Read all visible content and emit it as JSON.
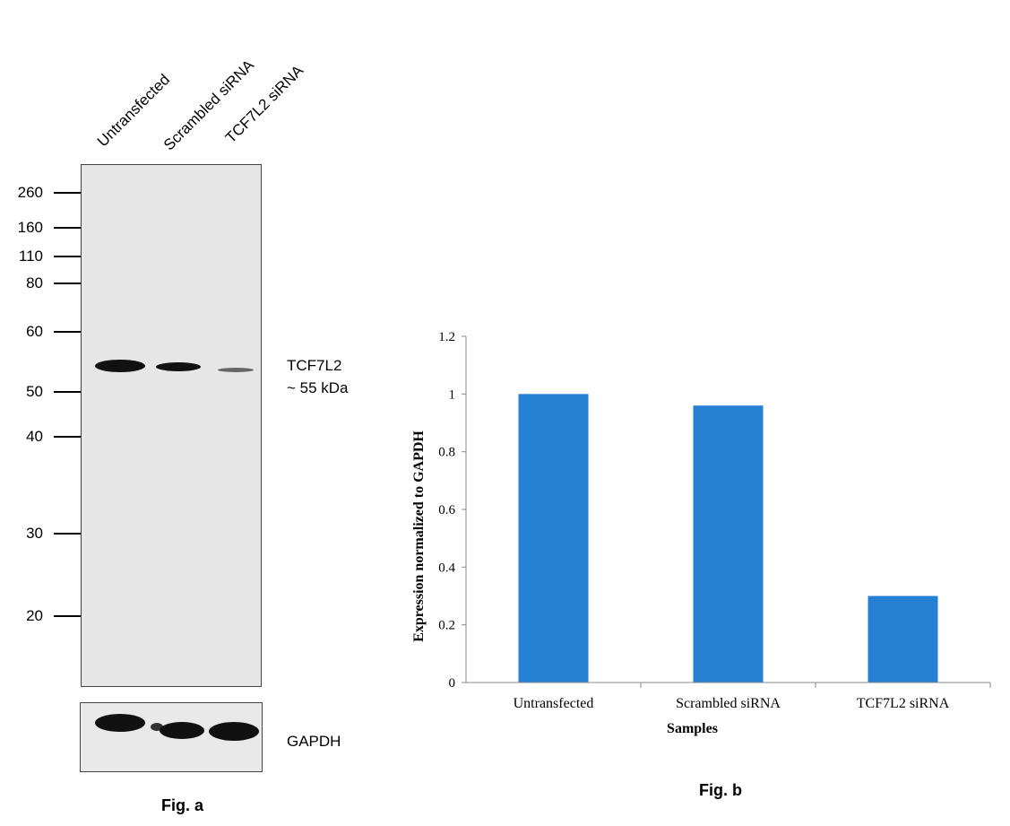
{
  "fig_a": {
    "caption": "Fig. a",
    "lanes": [
      "Untransfected",
      "Scrambled siRNA",
      "TCF7L2 siRNA"
    ],
    "markers": [
      "260",
      "160",
      "110",
      "80",
      "60",
      "50",
      "40",
      "30",
      "20"
    ],
    "target_label": "TCF7L2",
    "target_size": "~ 55 kDa",
    "loading_label": "GAPDH"
  },
  "fig_b": {
    "caption": "Fig. b"
  },
  "chart_data": {
    "type": "bar",
    "categories": [
      "Untransfected",
      "Scrambled siRNA",
      "TCF7L2 siRNA"
    ],
    "values": [
      1.0,
      0.96,
      0.3
    ],
    "yticks": [
      "0",
      "0.2",
      "0.4",
      "0.6",
      "0.8",
      "1",
      "1.2"
    ],
    "ylim": [
      0,
      1.2
    ],
    "xlabel": "Samples",
    "ylabel": "Expression normalized to GAPDH",
    "title": "",
    "grid": false,
    "bar_color": "#2680d4"
  }
}
